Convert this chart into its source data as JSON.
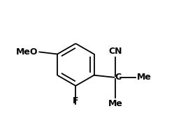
{
  "bg_color": "#ffffff",
  "line_color": "#000000",
  "text_color": "#000000",
  "label_F": "F",
  "label_CN": "CN",
  "label_C": "C",
  "label_Me1": "Me",
  "label_Me2": "Me",
  "label_MeO": "MeO",
  "figsize": [
    2.49,
    1.69
  ],
  "dpi": 100
}
